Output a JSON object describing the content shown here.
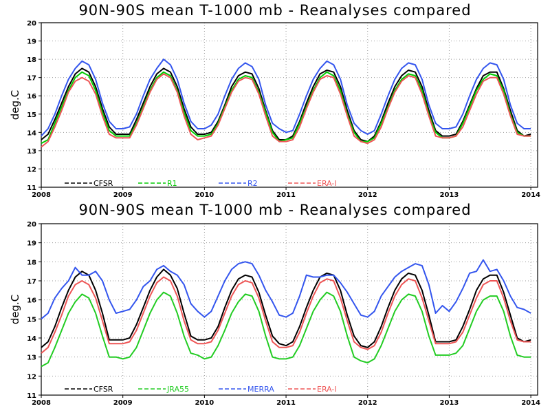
{
  "chart_data": [
    {
      "type": "line",
      "title": "90N-90S mean T-1000 mb - Reanalyses compared",
      "ylabel": "deg.C",
      "xlabel": "",
      "x_ticks": [
        "2008",
        "2009",
        "2010",
        "2011",
        "2012",
        "2013",
        "2014"
      ],
      "y_ticks": [
        "11",
        "12",
        "13",
        "14",
        "15",
        "16",
        "17",
        "18",
        "19",
        "20"
      ],
      "xlim": [
        2008.0,
        2014.0833
      ],
      "ylim": [
        11,
        20
      ],
      "grid": true,
      "legend_position": "bottom-left",
      "series": [
        {
          "name": "CFSR",
          "color": "#000000",
          "values": [
            13.6,
            13.9,
            14.7,
            15.6,
            16.5,
            17.2,
            17.5,
            17.3,
            16.5,
            15.3,
            14.3,
            13.9,
            13.9,
            13.9,
            14.7,
            15.6,
            16.5,
            17.2,
            17.5,
            17.3,
            16.5,
            15.3,
            14.3,
            13.9,
            13.9,
            14.0,
            14.6,
            15.5,
            16.5,
            17.1,
            17.3,
            17.2,
            16.4,
            15.2,
            14.1,
            13.6,
            13.6,
            13.8,
            14.6,
            15.6,
            16.5,
            17.2,
            17.4,
            17.3,
            16.5,
            15.2,
            14.1,
            13.6,
            13.5,
            13.8,
            14.6,
            15.6,
            16.5,
            17.1,
            17.4,
            17.3,
            16.5,
            15.2,
            14.1,
            13.8,
            13.8,
            13.9,
            14.6,
            15.5,
            16.4,
            17.1,
            17.3,
            17.3,
            16.4,
            15.2,
            14.1,
            13.8,
            13.9
          ]
        },
        {
          "name": "R1",
          "color": "#00cc00",
          "values": [
            13.4,
            13.6,
            14.5,
            15.4,
            16.3,
            17.0,
            17.3,
            17.1,
            16.3,
            15.1,
            14.1,
            13.8,
            13.8,
            13.8,
            14.5,
            15.4,
            16.3,
            17.0,
            17.3,
            17.1,
            16.3,
            15.1,
            14.1,
            13.8,
            13.8,
            13.9,
            14.5,
            15.4,
            16.3,
            16.9,
            17.1,
            17.0,
            16.2,
            15.1,
            14.0,
            13.5,
            13.6,
            13.7,
            14.5,
            15.4,
            16.3,
            17.0,
            17.3,
            17.1,
            16.3,
            15.0,
            14.0,
            13.5,
            13.5,
            13.7,
            14.5,
            15.4,
            16.3,
            16.9,
            17.2,
            17.1,
            16.3,
            15.0,
            14.0,
            13.7,
            13.7,
            13.8,
            14.5,
            15.4,
            16.3,
            16.9,
            17.2,
            17.1,
            16.3,
            15.0,
            14.0,
            13.8,
            13.8
          ]
        },
        {
          "name": "R2",
          "color": "#3355ee",
          "values": [
            13.8,
            14.2,
            15.0,
            16.0,
            16.9,
            17.5,
            17.9,
            17.7,
            16.9,
            15.6,
            14.6,
            14.2,
            14.2,
            14.3,
            15.0,
            16.0,
            16.9,
            17.5,
            18.0,
            17.7,
            16.9,
            15.6,
            14.6,
            14.2,
            14.2,
            14.4,
            15.0,
            16.0,
            16.9,
            17.5,
            17.8,
            17.6,
            16.9,
            15.5,
            14.5,
            14.2,
            14.0,
            14.1,
            15.0,
            16.0,
            16.9,
            17.5,
            17.9,
            17.7,
            16.9,
            15.5,
            14.5,
            14.1,
            13.9,
            14.1,
            15.0,
            16.0,
            16.9,
            17.5,
            17.8,
            17.7,
            16.9,
            15.5,
            14.5,
            14.2,
            14.2,
            14.3,
            15.0,
            16.0,
            16.9,
            17.5,
            17.8,
            17.7,
            16.9,
            15.5,
            14.5,
            14.2,
            14.2
          ]
        },
        {
          "name": "ERA-I",
          "color": "#ee5555",
          "values": [
            13.2,
            13.5,
            14.3,
            15.2,
            16.2,
            16.8,
            17.0,
            16.8,
            16.1,
            14.9,
            13.9,
            13.7,
            13.7,
            13.7,
            14.4,
            15.3,
            16.2,
            16.9,
            17.2,
            17.0,
            16.2,
            14.9,
            13.9,
            13.6,
            13.7,
            13.8,
            14.4,
            15.3,
            16.2,
            16.8,
            17.0,
            16.9,
            16.1,
            14.9,
            13.8,
            13.5,
            13.5,
            13.6,
            14.3,
            15.3,
            16.2,
            16.9,
            17.1,
            17.0,
            16.1,
            14.9,
            13.8,
            13.5,
            13.4,
            13.6,
            14.3,
            15.3,
            16.2,
            16.8,
            17.1,
            17.0,
            16.1,
            14.9,
            13.8,
            13.7,
            13.7,
            13.8,
            14.3,
            15.2,
            16.1,
            16.8,
            17.0,
            17.0,
            16.1,
            14.9,
            13.9,
            13.8,
            13.8
          ]
        }
      ]
    },
    {
      "type": "line",
      "title": "90N-90S mean T-1000 mb - Reanalyses compared",
      "ylabel": "deg.C",
      "xlabel": "",
      "x_ticks": [
        "2008",
        "2009",
        "2010",
        "2011",
        "2012",
        "2013",
        "2014"
      ],
      "y_ticks": [
        "11",
        "12",
        "13",
        "14",
        "15",
        "16",
        "17",
        "18",
        "19",
        "20"
      ],
      "xlim": [
        2008.0,
        2014.0833
      ],
      "ylim": [
        11,
        20
      ],
      "grid": true,
      "legend_position": "bottom-left",
      "series": [
        {
          "name": "CFSR",
          "color": "#000000",
          "values": [
            13.5,
            13.8,
            14.6,
            15.6,
            16.5,
            17.2,
            17.5,
            17.3,
            16.5,
            15.3,
            13.9,
            13.9,
            13.9,
            14.0,
            14.7,
            15.6,
            16.5,
            17.2,
            17.6,
            17.3,
            16.6,
            15.3,
            14.1,
            13.9,
            13.9,
            14.0,
            14.6,
            15.6,
            16.5,
            17.1,
            17.3,
            17.2,
            16.4,
            15.2,
            14.1,
            13.7,
            13.6,
            13.8,
            14.6,
            15.6,
            16.5,
            17.2,
            17.4,
            17.3,
            16.5,
            15.2,
            14.1,
            13.6,
            13.5,
            13.8,
            14.6,
            15.6,
            16.5,
            17.1,
            17.4,
            17.3,
            16.5,
            15.2,
            13.8,
            13.8,
            13.8,
            13.9,
            14.6,
            15.5,
            16.5,
            17.1,
            17.3,
            17.3,
            16.4,
            15.2,
            14.0,
            13.8,
            13.9
          ]
        },
        {
          "name": "JRA55",
          "color": "#22cc22",
          "values": [
            12.5,
            12.7,
            13.5,
            14.4,
            15.3,
            15.9,
            16.3,
            16.1,
            15.3,
            14.1,
            13.0,
            13.0,
            12.9,
            13.0,
            13.5,
            14.4,
            15.3,
            16.0,
            16.4,
            16.2,
            15.3,
            14.1,
            13.2,
            13.1,
            12.9,
            13.0,
            13.6,
            14.4,
            15.3,
            15.9,
            16.3,
            16.2,
            15.4,
            14.1,
            13.0,
            12.9,
            12.9,
            13.0,
            13.6,
            14.5,
            15.4,
            16.0,
            16.4,
            16.2,
            15.4,
            14.1,
            13.0,
            12.8,
            12.7,
            12.9,
            13.6,
            14.5,
            15.4,
            16.0,
            16.3,
            16.2,
            15.4,
            14.1,
            13.1,
            13.1,
            13.1,
            13.2,
            13.6,
            14.5,
            15.4,
            16.0,
            16.2,
            16.2,
            15.4,
            14.1,
            13.1,
            13.0,
            13.0
          ]
        },
        {
          "name": "MERRA",
          "color": "#3355ee",
          "values": [
            15.0,
            15.3,
            16.1,
            16.6,
            17.0,
            17.7,
            17.3,
            17.3,
            17.5,
            17.0,
            16.0,
            15.3,
            15.4,
            15.5,
            16.0,
            16.7,
            17.0,
            17.6,
            17.8,
            17.5,
            17.3,
            16.8,
            15.8,
            15.4,
            15.1,
            15.4,
            16.2,
            17.0,
            17.6,
            17.9,
            18.0,
            17.9,
            17.3,
            16.5,
            15.9,
            15.2,
            15.1,
            15.3,
            16.2,
            17.3,
            17.2,
            17.2,
            17.3,
            17.3,
            16.9,
            16.4,
            15.8,
            15.2,
            15.1,
            15.4,
            16.2,
            16.7,
            17.2,
            17.5,
            17.7,
            17.9,
            17.8,
            16.8,
            15.3,
            15.7,
            15.4,
            15.9,
            16.6,
            17.4,
            17.5,
            18.1,
            17.5,
            17.6,
            17.0,
            16.2,
            15.6,
            15.5,
            15.3
          ]
        },
        {
          "name": "ERA-I",
          "color": "#ee5555",
          "values": [
            13.2,
            13.5,
            14.3,
            15.2,
            16.2,
            16.8,
            17.0,
            16.8,
            16.1,
            14.9,
            13.7,
            13.7,
            13.7,
            13.8,
            14.4,
            15.3,
            16.2,
            16.9,
            17.2,
            17.0,
            16.2,
            14.9,
            13.9,
            13.7,
            13.7,
            13.8,
            14.4,
            15.3,
            16.2,
            16.8,
            17.0,
            16.9,
            16.1,
            14.9,
            13.8,
            13.5,
            13.5,
            13.6,
            14.3,
            15.3,
            16.2,
            16.9,
            17.1,
            17.0,
            16.1,
            14.9,
            13.8,
            13.5,
            13.4,
            13.6,
            14.3,
            15.3,
            16.2,
            16.8,
            17.1,
            17.0,
            16.1,
            14.9,
            13.7,
            13.7,
            13.7,
            13.8,
            14.3,
            15.2,
            16.1,
            16.8,
            17.0,
            17.0,
            16.1,
            14.9,
            13.9,
            13.8,
            13.8
          ]
        }
      ]
    }
  ]
}
